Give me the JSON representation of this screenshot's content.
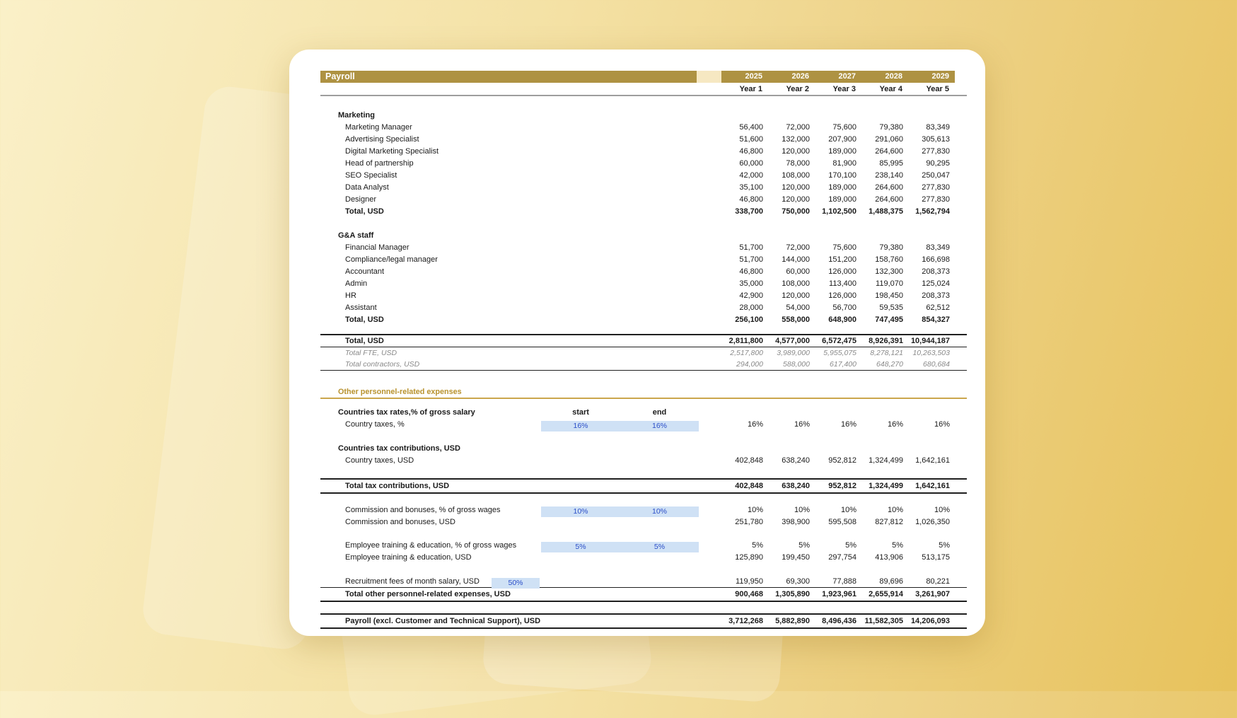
{
  "title": "Payroll",
  "columns": {
    "years": [
      "2025",
      "2026",
      "2027",
      "2028",
      "2029"
    ],
    "year_labels": [
      "Year 1",
      "Year 2",
      "Year 3",
      "Year 4",
      "Year 5"
    ]
  },
  "marketing": {
    "header": "Marketing",
    "rows": [
      {
        "label": "Marketing Manager",
        "values": [
          "56,400",
          "72,000",
          "75,600",
          "79,380",
          "83,349"
        ]
      },
      {
        "label": "Advertising Specialist",
        "values": [
          "51,600",
          "132,000",
          "207,900",
          "291,060",
          "305,613"
        ]
      },
      {
        "label": "Digital Marketing Specialist",
        "values": [
          "46,800",
          "120,000",
          "189,000",
          "264,600",
          "277,830"
        ]
      },
      {
        "label": "Head of partnership",
        "values": [
          "60,000",
          "78,000",
          "81,900",
          "85,995",
          "90,295"
        ]
      },
      {
        "label": "SEO Specialist",
        "values": [
          "42,000",
          "108,000",
          "170,100",
          "238,140",
          "250,047"
        ]
      },
      {
        "label": "Data Analyst",
        "values": [
          "35,100",
          "120,000",
          "189,000",
          "264,600",
          "277,830"
        ]
      },
      {
        "label": "Designer",
        "values": [
          "46,800",
          "120,000",
          "189,000",
          "264,600",
          "277,830"
        ]
      }
    ],
    "total": {
      "label": "Total, USD",
      "values": [
        "338,700",
        "750,000",
        "1,102,500",
        "1,488,375",
        "1,562,794"
      ]
    }
  },
  "ga_staff": {
    "header": "G&A staff",
    "rows": [
      {
        "label": "Financial Manager",
        "values": [
          "51,700",
          "72,000",
          "75,600",
          "79,380",
          "83,349"
        ]
      },
      {
        "label": "Compliance/legal manager",
        "values": [
          "51,700",
          "144,000",
          "151,200",
          "158,760",
          "166,698"
        ]
      },
      {
        "label": "Accountant",
        "values": [
          "46,800",
          "60,000",
          "126,000",
          "132,300",
          "208,373"
        ]
      },
      {
        "label": "Admin",
        "values": [
          "35,000",
          "108,000",
          "113,400",
          "119,070",
          "125,024"
        ]
      },
      {
        "label": "HR",
        "values": [
          "42,900",
          "120,000",
          "126,000",
          "198,450",
          "208,373"
        ]
      },
      {
        "label": "Assistant",
        "values": [
          "28,000",
          "54,000",
          "56,700",
          "59,535",
          "62,512"
        ]
      }
    ],
    "total": {
      "label": "Total, USD",
      "values": [
        "256,100",
        "558,000",
        "648,900",
        "747,495",
        "854,327"
      ]
    }
  },
  "grand_total": {
    "total": {
      "label": "Total, USD",
      "values": [
        "2,811,800",
        "4,577,000",
        "6,572,475",
        "8,926,391",
        "10,944,187"
      ]
    },
    "fte": {
      "label": "Total FTE, USD",
      "values": [
        "2,517,800",
        "3,989,000",
        "5,955,075",
        "8,278,121",
        "10,263,503"
      ]
    },
    "contractors": {
      "label": "Total contractors, USD",
      "values": [
        "294,000",
        "588,000",
        "617,400",
        "648,270",
        "680,684"
      ]
    }
  },
  "other_expenses": {
    "header": "Other personnel-related expenses",
    "tax_rates": {
      "header": "Countries tax rates,% of gross salary",
      "start_label": "start",
      "end_label": "end",
      "row": {
        "label": "Country taxes, %",
        "start": "16%",
        "end": "16%",
        "values": [
          "16%",
          "16%",
          "16%",
          "16%",
          "16%"
        ]
      }
    },
    "tax_contributions": {
      "header": "Countries tax contributions, USD",
      "row": {
        "label": "Country taxes, USD",
        "values": [
          "402,848",
          "638,240",
          "952,812",
          "1,324,499",
          "1,642,161"
        ]
      },
      "total": {
        "label": "Total tax contributions, USD",
        "values": [
          "402,848",
          "638,240",
          "952,812",
          "1,324,499",
          "1,642,161"
        ]
      }
    },
    "commission_pct": {
      "label": "Commission and bonuses, % of gross wages",
      "start": "10%",
      "end": "10%",
      "values": [
        "10%",
        "10%",
        "10%",
        "10%",
        "10%"
      ]
    },
    "commission_usd": {
      "label": "Commission and bonuses, USD",
      "values": [
        "251,780",
        "398,900",
        "595,508",
        "827,812",
        "1,026,350"
      ]
    },
    "training_pct": {
      "label": "Employee training & education, % of gross wages",
      "start": "5%",
      "end": "5%",
      "values": [
        "5%",
        "5%",
        "5%",
        "5%",
        "5%"
      ]
    },
    "training_usd": {
      "label": "Employee training & education, USD",
      "values": [
        "125,890",
        "199,450",
        "297,754",
        "413,906",
        "513,175"
      ]
    },
    "recruitment": {
      "label": "Recruitment fees of month salary, USD",
      "rate": "50%",
      "values": [
        "119,950",
        "69,300",
        "77,888",
        "89,696",
        "80,221"
      ]
    },
    "total_other": {
      "label": "Total other personnel-related expenses, USD",
      "values": [
        "900,468",
        "1,305,890",
        "1,923,961",
        "2,655,914",
        "3,261,907"
      ]
    }
  },
  "payroll_excl": {
    "label": "Payroll (excl. Customer and Technical Support), USD",
    "values": [
      "3,712,268",
      "5,882,890",
      "8,496,436",
      "11,582,305",
      "14,206,093"
    ]
  },
  "colors": {
    "bar_gold": "#AE9242",
    "gap_cream": "#F6E8C2",
    "gold_header_text": "#B8922E",
    "input_cell_bg": "#CFE1F5",
    "input_cell_text": "#2B4EC8"
  }
}
